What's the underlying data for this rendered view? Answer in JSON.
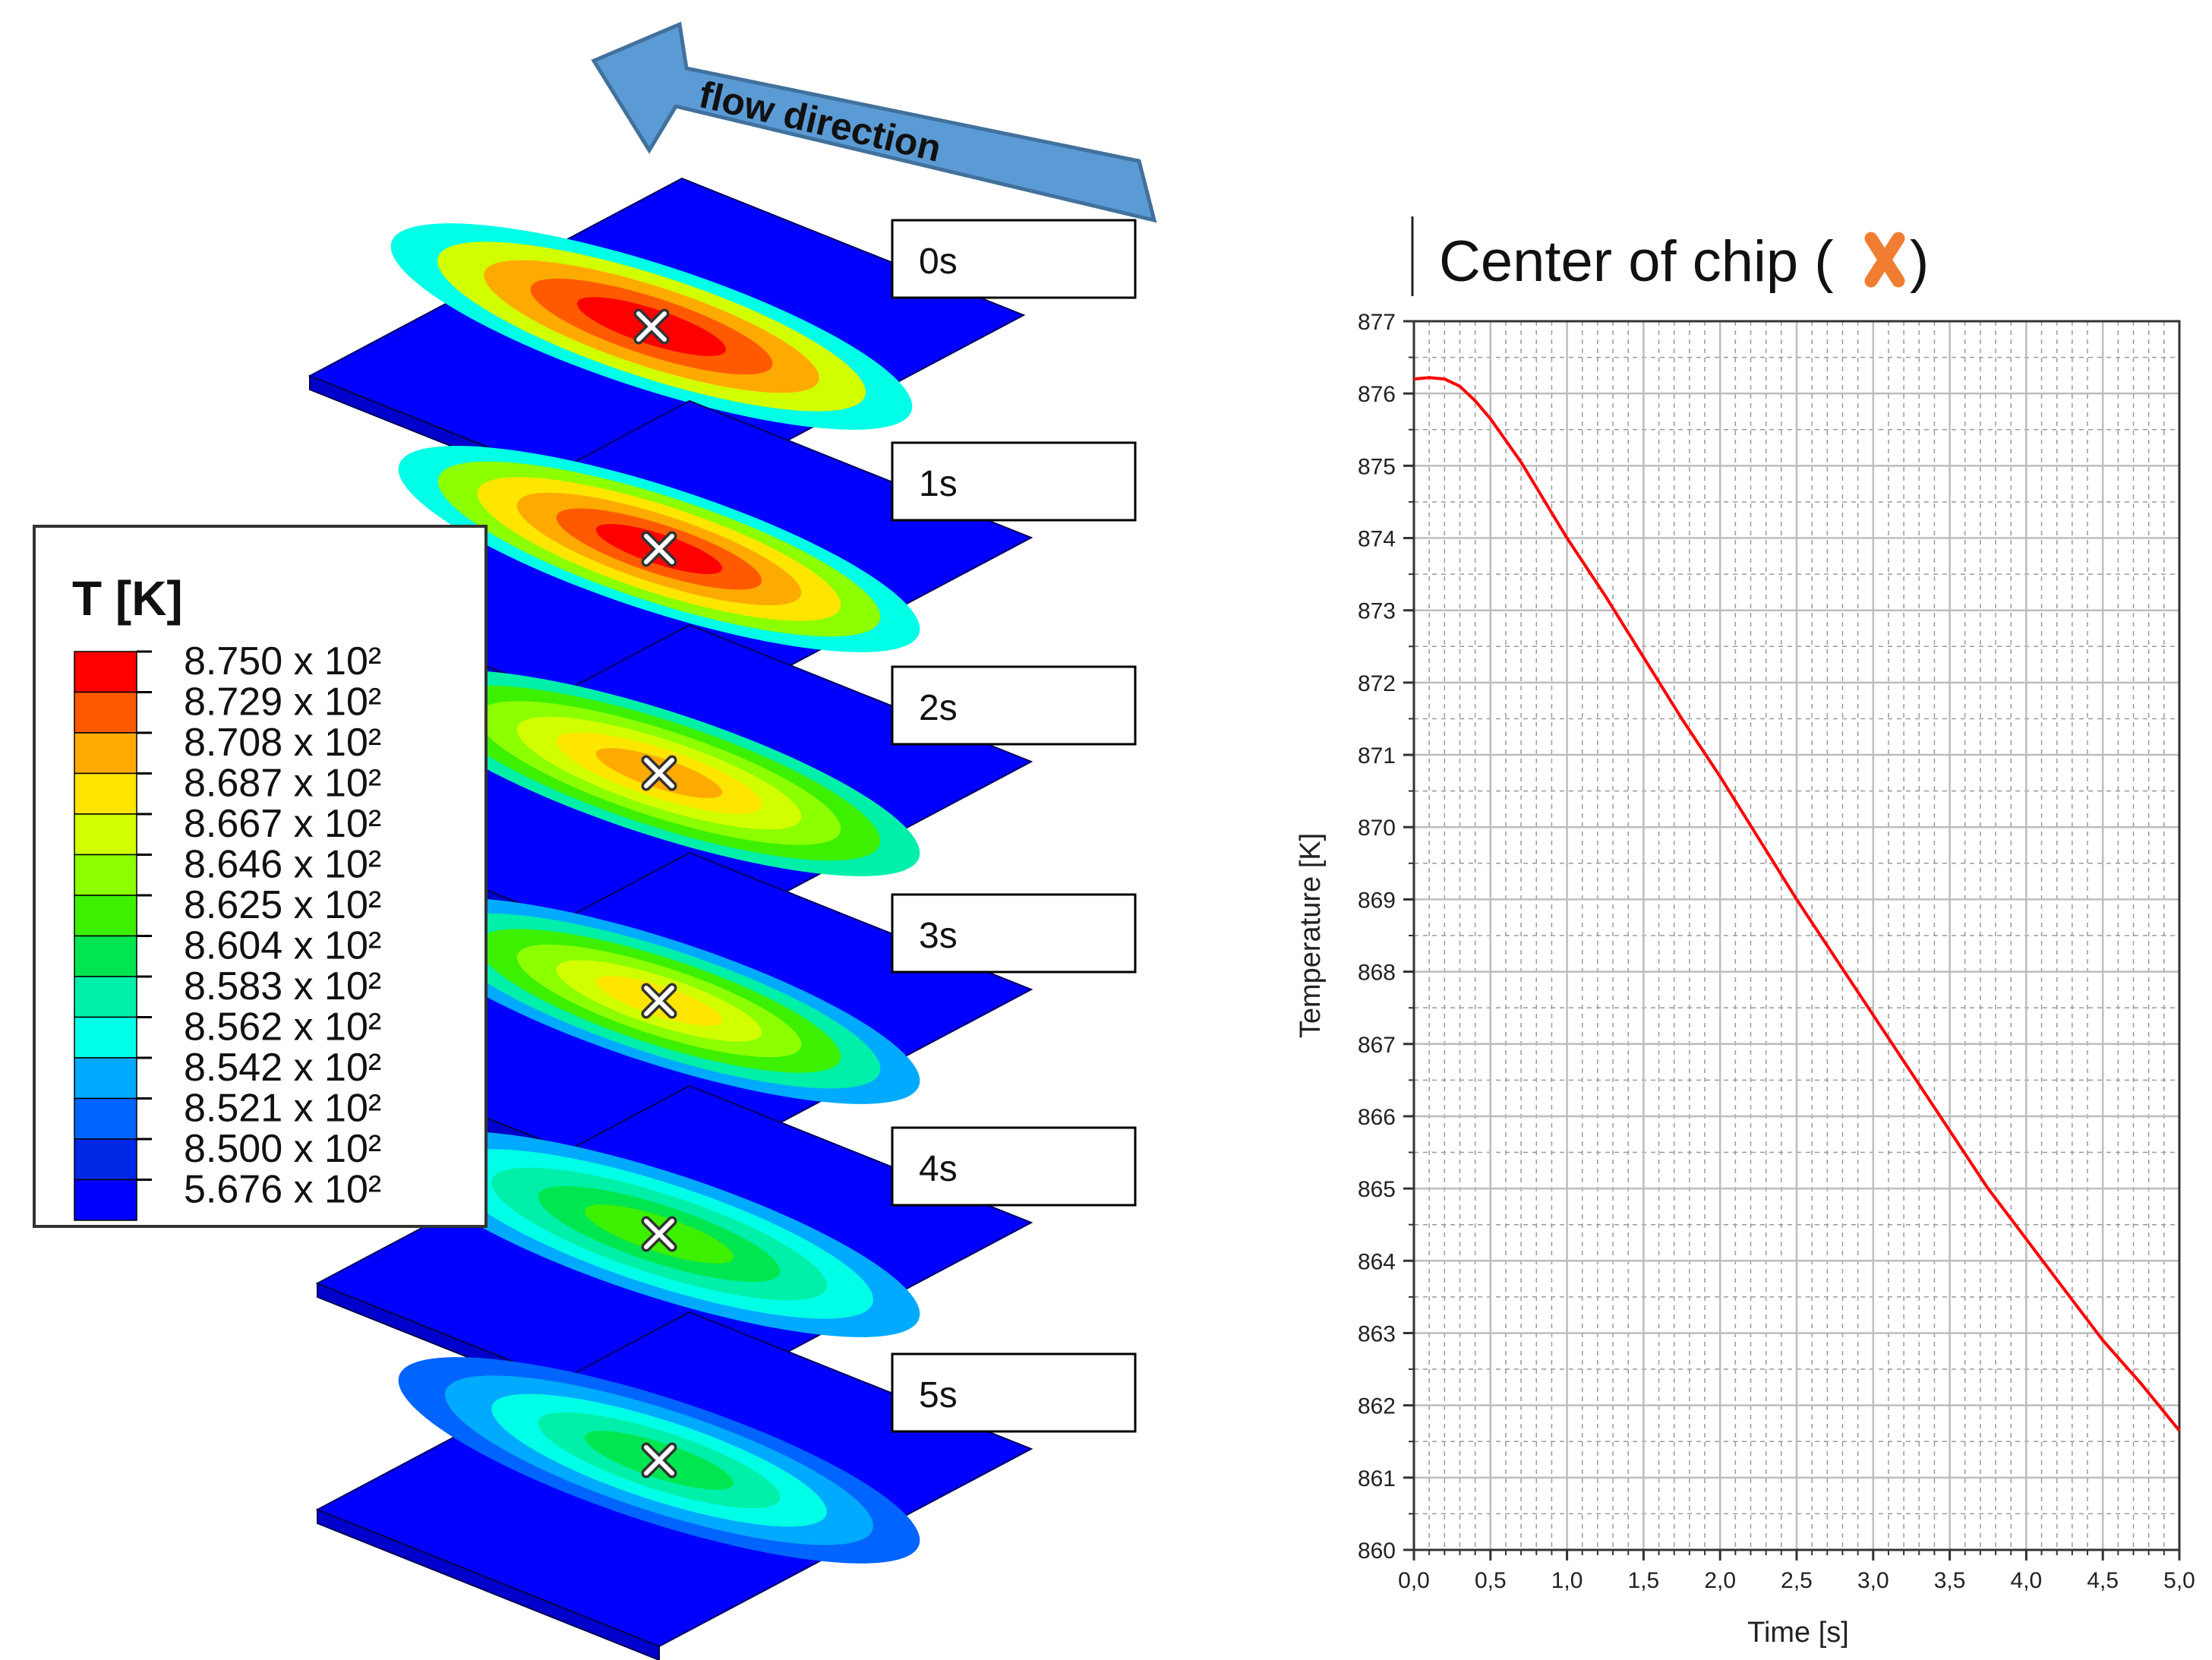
{
  "flow_label": "flow direction",
  "legend": {
    "title": "T [K]",
    "entries": [
      {
        "label": "8.750 x 10²",
        "color": "#ff0000"
      },
      {
        "label": "8.729 x 10²",
        "color": "#ff5a00"
      },
      {
        "label": "8.708 x 10²",
        "color": "#ffaa00"
      },
      {
        "label": "8.687 x 10²",
        "color": "#ffe600"
      },
      {
        "label": "8.667 x 10²",
        "color": "#d2ff00"
      },
      {
        "label": "8.646 x 10²",
        "color": "#8cff00"
      },
      {
        "label": "8.625 x 10²",
        "color": "#3cf000"
      },
      {
        "label": "8.604 x 10²",
        "color": "#00e650"
      },
      {
        "label": "8.583 x 10²",
        "color": "#00f0aa"
      },
      {
        "label": "8.562 x 10²",
        "color": "#00ffe6"
      },
      {
        "label": "8.542 x 10²",
        "color": "#00aaff"
      },
      {
        "label": "8.521 x 10²",
        "color": "#0064ff"
      },
      {
        "label": "8.500 x 10²",
        "color": "#0028e6"
      },
      {
        "label": "5.676 x 10²",
        "color": "#0000ff"
      }
    ]
  },
  "plates": [
    {
      "time": "0s",
      "ring_colors": [
        "#00ffe6",
        "#d2ff00",
        "#ffaa00",
        "#ff5a00",
        "#ff0000"
      ]
    },
    {
      "time": "1s",
      "ring_colors": [
        "#00ffe6",
        "#8cff00",
        "#ffe600",
        "#ffaa00",
        "#ff5a00",
        "#ff0000"
      ]
    },
    {
      "time": "2s",
      "ring_colors": [
        "#00f0aa",
        "#3cf000",
        "#8cff00",
        "#d2ff00",
        "#ffe600",
        "#ffaa00"
      ]
    },
    {
      "time": "3s",
      "ring_colors": [
        "#00aaff",
        "#00f0aa",
        "#3cf000",
        "#8cff00",
        "#d2ff00",
        "#ffe600"
      ]
    },
    {
      "time": "4s",
      "ring_colors": [
        "#00aaff",
        "#00ffe6",
        "#00f0aa",
        "#00e650",
        "#3cf000"
      ]
    },
    {
      "time": "5s",
      "ring_colors": [
        "#0064ff",
        "#00aaff",
        "#00ffe6",
        "#00f0aa",
        "#00e650"
      ]
    }
  ],
  "chart_title": {
    "text": "Center of chip (",
    "closing": ")",
    "marker_color": "#f07d32"
  },
  "chart_data": {
    "type": "line",
    "xlabel": "Time [s]",
    "ylabel": "Temperature [K]",
    "xlim": [
      0,
      5
    ],
    "ylim": [
      860,
      877
    ],
    "x_ticks": [
      "0,0",
      "0,5",
      "1,0",
      "1,5",
      "2,0",
      "2,5",
      "3,0",
      "3,5",
      "4,0",
      "4,5",
      "5,0"
    ],
    "y_ticks": [
      "860",
      "861",
      "862",
      "863",
      "864",
      "865",
      "866",
      "867",
      "868",
      "869",
      "870",
      "871",
      "872",
      "873",
      "874",
      "875",
      "876",
      "877"
    ],
    "grid": true,
    "line_color": "#ff0000",
    "series": [
      {
        "x": [
          0.0,
          0.1,
          0.2,
          0.3,
          0.4,
          0.5,
          0.6,
          0.7,
          0.8,
          0.9,
          1.0,
          1.25,
          1.5,
          1.75,
          2.0,
          2.25,
          2.5,
          2.75,
          3.0,
          3.25,
          3.5,
          3.75,
          4.0,
          4.25,
          4.5,
          4.75,
          5.0
        ],
        "y": [
          876.2,
          876.22,
          876.2,
          876.1,
          875.9,
          875.65,
          875.35,
          875.05,
          874.7,
          874.35,
          874.0,
          873.2,
          872.35,
          871.5,
          870.7,
          869.85,
          869.0,
          868.2,
          867.4,
          866.6,
          865.8,
          865.0,
          864.3,
          863.6,
          862.9,
          862.3,
          861.65
        ]
      }
    ]
  }
}
